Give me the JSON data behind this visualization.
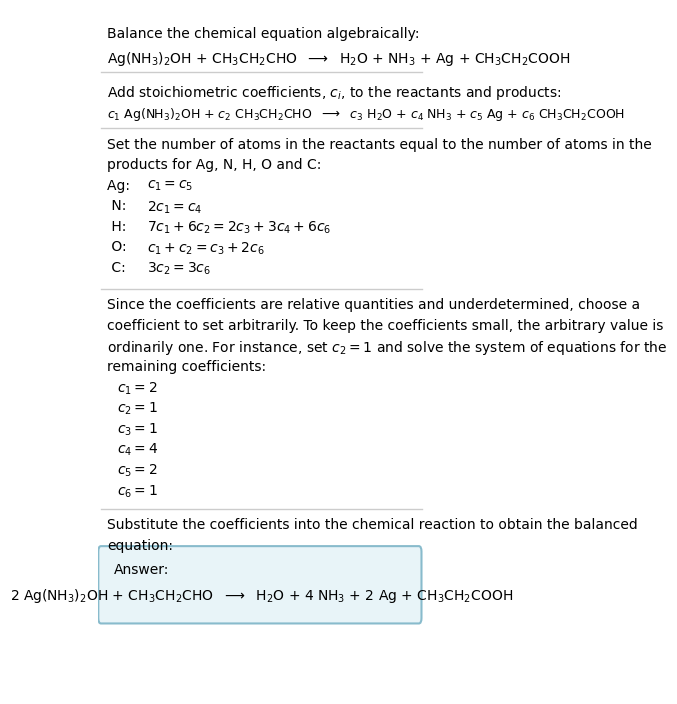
{
  "title_line1": "Balance the chemical equation algebraically:",
  "eq1": "Ag(NH$_3$)$_2$OH + CH$_3$CH$_2$CHO  $\\longrightarrow$  H$_2$O + NH$_3$ + Ag + CH$_3$CH$_2$COOH",
  "section2_title": "Add stoichiometric coefficients, $c_i$, to the reactants and products:",
  "eq2": "$c_1$ Ag(NH$_3$)$_2$OH + $c_2$ CH$_3$CH$_2$CHO  $\\longrightarrow$  $c_3$ H$_2$O + $c_4$ NH$_3$ + $c_5$ Ag + $c_6$ CH$_3$CH$_2$COOH",
  "section3_title1": "Set the number of atoms in the reactants equal to the number of atoms in the",
  "section3_title2": "products for Ag, N, H, O and C:",
  "atom_lines": [
    [
      "Ag: ",
      "$c_1 = c_5$"
    ],
    [
      " N: ",
      "$2 c_1 = c_4$"
    ],
    [
      " H: ",
      "$7 c_1 + 6 c_2 = 2 c_3 + 3 c_4 + 6 c_6$"
    ],
    [
      " O: ",
      "$c_1 + c_2 = c_3 + 2 c_6$"
    ],
    [
      " C: ",
      "$3 c_2 = 3 c_6$"
    ]
  ],
  "section4_text1": "Since the coefficients are relative quantities and underdetermined, choose a",
  "section4_text2": "coefficient to set arbitrarily. To keep the coefficients small, the arbitrary value is",
  "section4_text3": "ordinarily one. For instance, set $c_2 = 1$ and solve the system of equations for the",
  "section4_text4": "remaining coefficients:",
  "coeff_lines": [
    "$c_1 = 2$",
    "$c_2 = 1$",
    "$c_3 = 1$",
    "$c_4 = 4$",
    "$c_5 = 2$",
    "$c_6 = 1$"
  ],
  "section5_text1": "Substitute the coefficients into the chemical reaction to obtain the balanced",
  "section5_text2": "equation:",
  "answer_label": "Answer:",
  "answer_eq": "2 Ag(NH$_3$)$_2$OH + CH$_3$CH$_2$CHO  $\\longrightarrow$  H$_2$O + 4 NH$_3$ + 2 Ag + CH$_3$CH$_2$COOH",
  "bg_color": "#ffffff",
  "text_color": "#000000",
  "box_bg_color": "#e8f4f8",
  "box_border_color": "#88bbcc",
  "sep_color": "#cccccc",
  "font_size": 10,
  "fig_width": 5.34,
  "fig_height": 6.87
}
